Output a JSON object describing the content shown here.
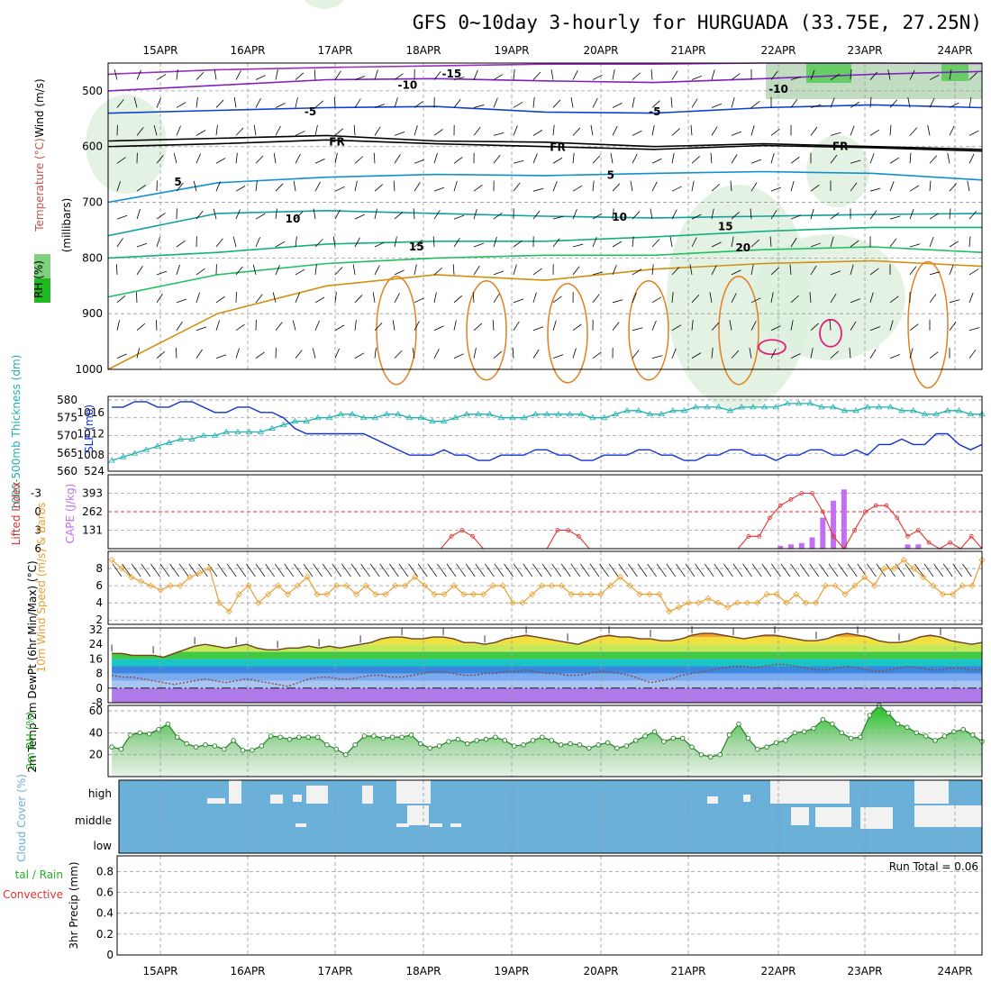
{
  "title": "GFS 0~10day 3-hourly for HURGUADA (33.75E, 27.25N)",
  "dates": [
    "15APR",
    "16APR",
    "17APR",
    "18APR",
    "19APR",
    "20APR",
    "21APR",
    "22APR",
    "23APR",
    "24APR"
  ],
  "colors": {
    "rh": "#1fb81f",
    "temp_warm": "#e07010",
    "temp_cold": "#8020c0",
    "wind": "#e8a030",
    "thickness": "#20b0b0",
    "slp": "#1030d0",
    "cape": "#c070f0",
    "li": "#e03030",
    "cloud": "#6ab0d8"
  },
  "chart_data": [
    {
      "type": "contour",
      "name": "upper-air",
      "ylabel": "(millibars)",
      "side_label_rh": "RH (%)",
      "side_label_temp": "Temperature (°C)",
      "side_label_wind": "Wind (m/s)",
      "y_ticks": [
        "500",
        "600",
        "700",
        "800",
        "900",
        "1000"
      ],
      "ylim": [
        1000,
        450
      ],
      "contour_labels": [
        {
          "text": "-15",
          "date_index": 3.3,
          "p": 468,
          "color": "#8020c0"
        },
        {
          "text": "-10",
          "date_index": 2.8,
          "p": 488,
          "color": "#8020c0"
        },
        {
          "text": "-10",
          "date_index": 7.0,
          "p": 495,
          "color": "#8020c0"
        },
        {
          "text": "-5",
          "date_index": 1.7,
          "p": 536,
          "color": "#1060d0"
        },
        {
          "text": "-5",
          "date_index": 5.6,
          "p": 536,
          "color": "#1060d0"
        },
        {
          "text": "FR",
          "date_index": 2.0,
          "p": 590,
          "color": "#000000"
        },
        {
          "text": "FR",
          "date_index": 4.5,
          "p": 600,
          "color": "#000000"
        },
        {
          "text": "FR",
          "date_index": 7.7,
          "p": 598,
          "color": "#000000"
        },
        {
          "text": "5",
          "date_index": 0.2,
          "p": 662,
          "color": "#1090d0"
        },
        {
          "text": "5",
          "date_index": 5.1,
          "p": 650,
          "color": "#1090d0"
        },
        {
          "text": "10",
          "date_index": 1.5,
          "p": 728,
          "color": "#10a0a0"
        },
        {
          "text": "10",
          "date_index": 5.2,
          "p": 725,
          "color": "#10a0a0"
        },
        {
          "text": "15",
          "date_index": 2.9,
          "p": 778,
          "color": "#10b080"
        },
        {
          "text": "15",
          "date_index": 6.4,
          "p": 742,
          "color": "#10b080"
        },
        {
          "text": "20",
          "date_index": 6.6,
          "p": 780,
          "color": "#d09010"
        }
      ]
    },
    {
      "type": "line",
      "name": "thickness-slp",
      "ylabel_left": "1000-500mb Thickness (dm)",
      "ylabel_right": "SLP (mb)",
      "left_ticks": [
        "580",
        "575",
        "570",
        "565",
        "560"
      ],
      "right_ticks": [
        "1016",
        "1012",
        "1008",
        "524"
      ],
      "thickness": [
        563,
        564,
        565,
        566,
        567,
        568,
        569,
        569,
        570,
        570,
        571,
        571,
        571,
        571,
        572,
        573,
        574,
        574,
        575,
        575,
        576,
        576,
        575,
        575,
        576,
        576,
        575,
        575,
        574,
        574,
        575,
        576,
        576,
        576,
        575,
        575,
        575,
        576,
        576,
        576,
        576,
        576,
        575,
        575,
        576,
        577,
        577,
        576,
        576,
        577,
        577,
        578,
        578,
        578,
        577,
        578,
        578,
        578,
        578,
        579,
        579,
        579,
        578,
        578,
        577,
        577,
        578,
        578,
        578,
        577,
        577,
        576,
        576,
        577,
        577,
        576,
        576
      ],
      "slp": [
        1017,
        1017,
        1018,
        1018,
        1017,
        1017,
        1018,
        1018,
        1017,
        1016,
        1016,
        1017,
        1017,
        1016,
        1016,
        1015,
        1013,
        1012,
        1012,
        1012,
        1012,
        1012,
        1012,
        1011,
        1010,
        1009,
        1008,
        1008,
        1008,
        1009,
        1008,
        1008,
        1007,
        1007,
        1008,
        1008,
        1008,
        1009,
        1009,
        1008,
        1008,
        1007,
        1007,
        1008,
        1008,
        1008,
        1009,
        1009,
        1008,
        1008,
        1007,
        1007,
        1008,
        1008,
        1009,
        1009,
        1008,
        1008,
        1007,
        1008,
        1008,
        1009,
        1009,
        1008,
        1008,
        1009,
        1008,
        1010,
        1010,
        1011,
        1010,
        1010,
        1012,
        1012,
        1010,
        1009,
        1010
      ],
      "thickness_range": [
        560,
        581
      ],
      "slp_range": [
        1005,
        1019
      ]
    },
    {
      "type": "bar+line",
      "name": "cape-li",
      "ylabel_left": "Lifted Index",
      "ylabel_right": "CAPE (J/kg)",
      "li_ticks": [
        "-3",
        "0",
        "3",
        "6"
      ],
      "cape_ticks": [
        "393",
        "262",
        "131"
      ],
      "cape": [
        0,
        0,
        0,
        0,
        0,
        0,
        0,
        0,
        0,
        0,
        0,
        0,
        0,
        0,
        0,
        0,
        0,
        0,
        0,
        0,
        0,
        0,
        0,
        0,
        0,
        0,
        0,
        0,
        0,
        0,
        0,
        0,
        0,
        0,
        0,
        0,
        0,
        0,
        0,
        0,
        0,
        0,
        0,
        0,
        0,
        0,
        0,
        0,
        0,
        0,
        0,
        0,
        0,
        0,
        0,
        0,
        0,
        0,
        0,
        0,
        0,
        0,
        0,
        20,
        30,
        40,
        80,
        220,
        340,
        420,
        0,
        0,
        0,
        0,
        0,
        30,
        30,
        0,
        0,
        0,
        0,
        0,
        0
      ],
      "li": [
        7,
        7,
        7,
        7,
        7,
        7,
        7,
        7,
        7,
        7,
        7,
        7,
        7,
        7,
        7,
        7,
        7,
        7,
        7,
        7,
        7,
        7,
        7,
        7,
        7,
        7,
        7,
        7,
        7,
        7,
        7,
        7,
        4,
        3,
        4,
        6,
        7,
        7,
        7,
        7,
        7,
        7,
        3,
        3,
        4,
        7,
        7,
        7,
        7,
        7,
        7,
        7,
        7,
        7,
        7,
        7,
        7,
        7,
        7,
        6,
        4,
        4,
        1,
        -1,
        -2,
        -3,
        -3,
        0,
        4,
        6,
        3,
        0,
        -1,
        -1,
        1,
        4,
        3,
        5,
        6,
        5,
        6,
        4,
        7
      ],
      "cape_range": [
        0,
        524
      ],
      "li_range": [
        6,
        -6
      ]
    },
    {
      "type": "line",
      "name": "wind10m",
      "ylabel": "10m Wind Speed (m/s) & Barbs",
      "y_ticks": [
        "8",
        "6",
        "4",
        "2"
      ],
      "ylim": [
        1.5,
        10
      ],
      "values": [
        9,
        8,
        7,
        6.5,
        6,
        5.5,
        6,
        6,
        7,
        7.5,
        8,
        4,
        3,
        5,
        6,
        4,
        5,
        6,
        5,
        6,
        7,
        5,
        5,
        6,
        6,
        5,
        6,
        5,
        5,
        6,
        6,
        7,
        6,
        5,
        5,
        6,
        5,
        5,
        5,
        6,
        6,
        4,
        4,
        5,
        6,
        6,
        6,
        5,
        5,
        5,
        5,
        6,
        7,
        6,
        5,
        5,
        5,
        3,
        3.5,
        4,
        4,
        4.5,
        4,
        3.5,
        4,
        4,
        4,
        5,
        5,
        4,
        5,
        4,
        4,
        6,
        6,
        5,
        6,
        7,
        6,
        8,
        8,
        9,
        8,
        7,
        6,
        5,
        5,
        6,
        6,
        9
      ]
    },
    {
      "type": "area",
      "name": "temp2m",
      "ylabel": "2m Temp 2m DewPt (6hr Min/Max) (°C)",
      "y_ticks": [
        "32",
        "24",
        "16",
        "8",
        "0",
        "-8"
      ],
      "ylim": [
        -8,
        33
      ],
      "temp": [
        19,
        19,
        18,
        18,
        18,
        17,
        19,
        21,
        23,
        24,
        23,
        22,
        23,
        24,
        22,
        21,
        21,
        22,
        22,
        23,
        22,
        23,
        22,
        23,
        24,
        25,
        27,
        28,
        28,
        27,
        27,
        28,
        28,
        27,
        25,
        25,
        24,
        25,
        27,
        28,
        29,
        28,
        27,
        26,
        25,
        24,
        26,
        28,
        29,
        28,
        28,
        27,
        27,
        26,
        26,
        27,
        29,
        30,
        30,
        29,
        28,
        27,
        28,
        29,
        29,
        28,
        27,
        26,
        26,
        27,
        29,
        30,
        29,
        28,
        26,
        25,
        25,
        26,
        28,
        29,
        28,
        26,
        25,
        24,
        25
      ],
      "dewpt": [
        7,
        6,
        6,
        5,
        4,
        3,
        2,
        3,
        4,
        5,
        4,
        3,
        4,
        5,
        4,
        3,
        2,
        1,
        3,
        5,
        6,
        6,
        5,
        5,
        6,
        7,
        7,
        6,
        6,
        7,
        8,
        9,
        9,
        8,
        7,
        7,
        8,
        8,
        9,
        9,
        10,
        9,
        8,
        8,
        7,
        7,
        8,
        9,
        9,
        8,
        7,
        5,
        3,
        4,
        5,
        7,
        8,
        9,
        10,
        11,
        12,
        12,
        11,
        12,
        13,
        13,
        12,
        11,
        10,
        10,
        11,
        12,
        11,
        10,
        9,
        10,
        11,
        12,
        11,
        10,
        10,
        11,
        11,
        10,
        10
      ]
    },
    {
      "type": "area",
      "name": "rh2m",
      "ylabel": "2m RH (%)",
      "y_ticks": [
        "60",
        "40",
        "20"
      ],
      "ylim": [
        0,
        65
      ],
      "values": [
        27,
        25,
        38,
        40,
        39,
        43,
        48,
        36,
        30,
        27,
        29,
        28,
        25,
        33,
        24,
        24,
        28,
        37,
        36,
        34,
        36,
        36,
        36,
        29,
        25,
        20,
        29,
        37,
        37,
        35,
        36,
        36,
        38,
        30,
        26,
        28,
        32,
        34,
        30,
        33,
        34,
        36,
        33,
        28,
        29,
        33,
        36,
        33,
        29,
        30,
        29,
        26,
        29,
        31,
        26,
        28,
        33,
        37,
        41,
        32,
        35,
        35,
        27,
        20,
        18,
        20,
        38,
        48,
        35,
        25,
        27,
        31,
        33,
        40,
        41,
        44,
        52,
        48,
        40,
        35,
        36,
        56,
        65,
        58,
        48,
        45,
        40,
        37,
        33,
        37,
        41,
        43,
        38,
        32
      ]
    },
    {
      "type": "heatmap",
      "name": "cloud",
      "ylabel": "Cloud Cover (%)",
      "y_ticks": [
        "high",
        "middle",
        "low"
      ]
    },
    {
      "type": "bar",
      "name": "precip",
      "ylabel_left": "Total / Rain Convective",
      "ylabel": "3hr Precip (mm)",
      "y_ticks": [
        "0.8",
        "0.6",
        "0.4",
        "0.2",
        "0"
      ],
      "ylim": [
        0,
        0.95
      ],
      "run_total": "Run Total = 0.06"
    }
  ]
}
